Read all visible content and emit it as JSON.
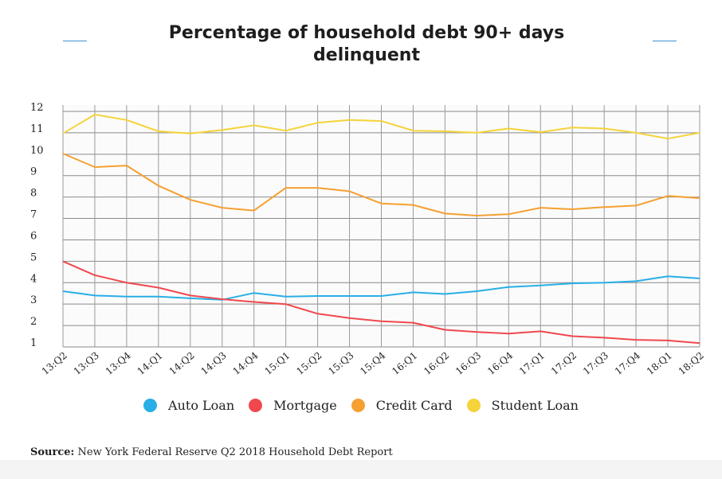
{
  "title_line1": "Percentage of household debt 90+ days",
  "title_line2": "delinquent",
  "source_label": "Source:",
  "source_text": "New York Federal Reserve Q2 2018 Household Debt Report",
  "chart_data": {
    "type": "line",
    "title": "Percentage of household debt 90+ days delinquent",
    "xlabel": "",
    "ylabel": "",
    "ylim": [
      1,
      12
    ],
    "yticks": [
      1,
      2,
      3,
      4,
      5,
      6,
      7,
      8,
      9,
      10,
      11,
      12
    ],
    "grid": true,
    "legend_position": "bottom",
    "categories": [
      "13:Q2",
      "13:Q3",
      "13:Q4",
      "14:Q1",
      "14:Q2",
      "14:Q3",
      "14:Q4",
      "15:Q1",
      "15:Q2",
      "15:Q3",
      "15:Q4",
      "16:Q1",
      "16:Q2",
      "16:Q3",
      "16:Q4",
      "17:Q1",
      "17:Q2",
      "17:Q3",
      "17:Q4",
      "18:Q1",
      "18:Q2"
    ],
    "series": [
      {
        "name": "Auto Loan",
        "color": "#29aee6",
        "values": [
          3.6,
          3.4,
          3.35,
          3.35,
          3.27,
          3.2,
          3.52,
          3.35,
          3.38,
          3.38,
          3.38,
          3.55,
          3.47,
          3.6,
          3.8,
          3.87,
          3.97,
          4.0,
          4.07,
          4.3,
          4.2
        ]
      },
      {
        "name": "Mortgage",
        "color": "#f0484e",
        "values": [
          5.0,
          4.35,
          4.0,
          3.77,
          3.4,
          3.23,
          3.1,
          3.0,
          2.55,
          2.35,
          2.2,
          2.13,
          1.8,
          1.7,
          1.62,
          1.73,
          1.5,
          1.43,
          1.33,
          1.3,
          1.18
        ]
      },
      {
        "name": "Credit Card",
        "color": "#f5a031",
        "values": [
          10.03,
          9.4,
          9.47,
          8.53,
          7.87,
          7.5,
          7.37,
          8.43,
          8.43,
          8.27,
          7.7,
          7.63,
          7.23,
          7.13,
          7.2,
          7.5,
          7.43,
          7.53,
          7.6,
          8.05,
          7.95
        ]
      },
      {
        "name": "Student Loan",
        "color": "#f5d33a",
        "values": [
          10.97,
          11.85,
          11.6,
          11.07,
          10.97,
          11.13,
          11.35,
          11.1,
          11.47,
          11.6,
          11.55,
          11.1,
          11.07,
          11.0,
          11.2,
          11.03,
          11.25,
          11.2,
          11.0,
          10.73,
          11.0
        ]
      }
    ]
  }
}
